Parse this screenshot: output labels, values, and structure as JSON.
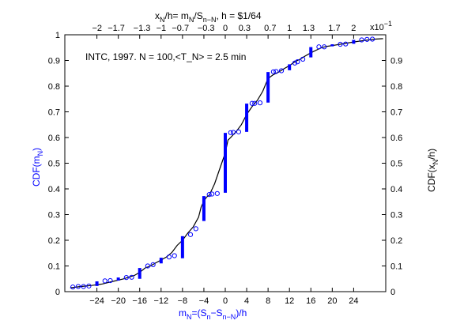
{
  "chart_data": {
    "type": "line",
    "annotation": "INTC, 1997. N = 100,<T_N> = 2.5 min",
    "bottom_axis": {
      "label_main": "m",
      "label_sub": "N",
      "label_rest": "=(S",
      "label_sub2": "n",
      "label_dash": "−S",
      "label_sub3": "n−N",
      "label_end": ")/h",
      "range": [
        -30,
        30
      ],
      "ticks": [
        -24,
        -20,
        -16,
        -12,
        -8,
        -4,
        0,
        4,
        8,
        12,
        16,
        20,
        24
      ],
      "tick_labels": [
        "−24",
        "−20",
        "−16",
        "−12",
        "−8",
        "−4",
        "0",
        "4",
        "8",
        "12",
        "16",
        "20",
        "24"
      ],
      "color": "#0000ff"
    },
    "top_axis": {
      "label": "x_N/h= m_N/S_{n−N}, h = $1/64",
      "label_parts": [
        "x",
        "N",
        "/h= m",
        "N",
        "/S",
        "n−N",
        ", h = $1/64"
      ],
      "ticks": [
        -2,
        -1.7,
        -1.3,
        -1,
        -0.7,
        -0.3,
        0,
        0.3,
        0.7,
        1,
        1.3,
        1.7,
        2
      ],
      "tick_labels": [
        "−2",
        "−1.7",
        "−1.3",
        "−1",
        "−0.7",
        "−0.3",
        "0",
        "0.3",
        "0.7",
        "1",
        "1.3",
        "1.7",
        "2"
      ],
      "exponent_label": "x10",
      "exponent_power": "−1",
      "scale_per_bottom_unit": 0.0834
    },
    "y_left": {
      "label": "CDF(m",
      "label_sub": "N",
      "label_end": ")",
      "range": [
        0,
        1
      ],
      "ticks": [
        0,
        0.1,
        0.2,
        0.3,
        0.4,
        0.5,
        0.6,
        0.7,
        0.8,
        0.9,
        1
      ],
      "tick_labels": [
        "0",
        "0.1",
        "0.2",
        "0.3",
        "0.4",
        "0.5",
        "0.6",
        "0.7",
        "0.8",
        "0.9",
        "1"
      ],
      "color": "#0000ff"
    },
    "y_right": {
      "label": "CDF(x",
      "label_sub": "N",
      "label_end": "/h)",
      "range": [
        0,
        1
      ],
      "ticks": [
        0,
        0.1,
        0.2,
        0.3,
        0.4,
        0.5,
        0.6,
        0.7,
        0.8,
        0.9
      ],
      "tick_labels": [
        "0",
        "0.1",
        "0.2",
        "0.3",
        "0.4",
        "0.5",
        "0.6",
        "0.7",
        "0.8",
        "0.9"
      ]
    },
    "grid": false,
    "series": [
      {
        "marker": "filled-bar",
        "color": "#0000ff",
        "steps": [
          {
            "x": -24,
            "y0": 0.022,
            "y1": 0.04
          },
          {
            "x": -20,
            "y0": 0.043,
            "y1": 0.055
          },
          {
            "x": -16,
            "y0": 0.05,
            "y1": 0.092
          },
          {
            "x": -12,
            "y0": 0.11,
            "y1": 0.132
          },
          {
            "x": -8,
            "y0": 0.13,
            "y1": 0.216
          },
          {
            "x": -4,
            "y0": 0.275,
            "y1": 0.372
          },
          {
            "x": 0,
            "y0": 0.385,
            "y1": 0.618
          },
          {
            "x": 4,
            "y0": 0.622,
            "y1": 0.732
          },
          {
            "x": 8,
            "y0": 0.736,
            "y1": 0.855
          },
          {
            "x": 12,
            "y0": 0.862,
            "y1": 0.885
          },
          {
            "x": 16,
            "y0": 0.912,
            "y1": 0.952
          },
          {
            "x": 20,
            "y0": 0.955,
            "y1": 0.963
          },
          {
            "x": 24,
            "y0": 0.965,
            "y1": 0.98
          }
        ]
      },
      {
        "marker": "open-circle",
        "color": "#0000ff",
        "points": [
          {
            "x": -28.5,
            "y": 0.018
          },
          {
            "x": -27.5,
            "y": 0.02
          },
          {
            "x": -26.5,
            "y": 0.02
          },
          {
            "x": -25.5,
            "y": 0.022
          },
          {
            "x": -22.5,
            "y": 0.042
          },
          {
            "x": -21.5,
            "y": 0.043
          },
          {
            "x": -18.5,
            "y": 0.055
          },
          {
            "x": -17.5,
            "y": 0.056
          },
          {
            "x": -14.5,
            "y": 0.1
          },
          {
            "x": -13.5,
            "y": 0.105
          },
          {
            "x": -10.5,
            "y": 0.135
          },
          {
            "x": -9.5,
            "y": 0.14
          },
          {
            "x": -6.5,
            "y": 0.222
          },
          {
            "x": -5.5,
            "y": 0.245
          },
          {
            "x": -3,
            "y": 0.378
          },
          {
            "x": -2.5,
            "y": 0.38
          },
          {
            "x": -1.5,
            "y": 0.382
          },
          {
            "x": 1,
            "y": 0.619
          },
          {
            "x": 1.5,
            "y": 0.62
          },
          {
            "x": 2.5,
            "y": 0.622
          },
          {
            "x": 5,
            "y": 0.733
          },
          {
            "x": 5.5,
            "y": 0.733
          },
          {
            "x": 6.5,
            "y": 0.735
          },
          {
            "x": 9,
            "y": 0.856
          },
          {
            "x": 9.5,
            "y": 0.857
          },
          {
            "x": 10.5,
            "y": 0.86
          },
          {
            "x": 13,
            "y": 0.89
          },
          {
            "x": 13.5,
            "y": 0.895
          },
          {
            "x": 14.5,
            "y": 0.905
          },
          {
            "x": 17.5,
            "y": 0.953
          },
          {
            "x": 18.5,
            "y": 0.953
          },
          {
            "x": 21.5,
            "y": 0.963
          },
          {
            "x": 22.5,
            "y": 0.964
          },
          {
            "x": 25.5,
            "y": 0.98
          },
          {
            "x": 26.5,
            "y": 0.982
          },
          {
            "x": 27.5,
            "y": 0.983
          }
        ]
      },
      {
        "marker": "line",
        "color": "#000000",
        "points": [
          [
            -29,
            0.015
          ],
          [
            -27,
            0.02
          ],
          [
            -25,
            0.024
          ],
          [
            -23,
            0.03
          ],
          [
            -21,
            0.04
          ],
          [
            -19,
            0.05
          ],
          [
            -17,
            0.063
          ],
          [
            -16,
            0.075
          ],
          [
            -15,
            0.092
          ],
          [
            -14,
            0.1
          ],
          [
            -13,
            0.112
          ],
          [
            -12,
            0.123
          ],
          [
            -11,
            0.135
          ],
          [
            -10,
            0.152
          ],
          [
            -9,
            0.18
          ],
          [
            -8,
            0.2
          ],
          [
            -7,
            0.228
          ],
          [
            -6,
            0.252
          ],
          [
            -5,
            0.29
          ],
          [
            -4.5,
            0.33
          ],
          [
            -4,
            0.352
          ],
          [
            -3.5,
            0.368
          ],
          [
            -3,
            0.375
          ],
          [
            -2,
            0.42
          ],
          [
            -1,
            0.48
          ],
          [
            0,
            0.54
          ],
          [
            0.5,
            0.59
          ],
          [
            1,
            0.6
          ],
          [
            2,
            0.622
          ],
          [
            3,
            0.65
          ],
          [
            4,
            0.69
          ],
          [
            5,
            0.72
          ],
          [
            6,
            0.745
          ],
          [
            7,
            0.78
          ],
          [
            8,
            0.83
          ],
          [
            9,
            0.845
          ],
          [
            10,
            0.855
          ],
          [
            11,
            0.868
          ],
          [
            12,
            0.88
          ],
          [
            13,
            0.895
          ],
          [
            14,
            0.905
          ],
          [
            15,
            0.918
          ],
          [
            16,
            0.93
          ],
          [
            17,
            0.94
          ],
          [
            18,
            0.95
          ],
          [
            19,
            0.955
          ],
          [
            20,
            0.958
          ],
          [
            22,
            0.965
          ],
          [
            24,
            0.972
          ],
          [
            26,
            0.978
          ],
          [
            28,
            0.983
          ],
          [
            29.5,
            0.985
          ]
        ]
      }
    ]
  }
}
